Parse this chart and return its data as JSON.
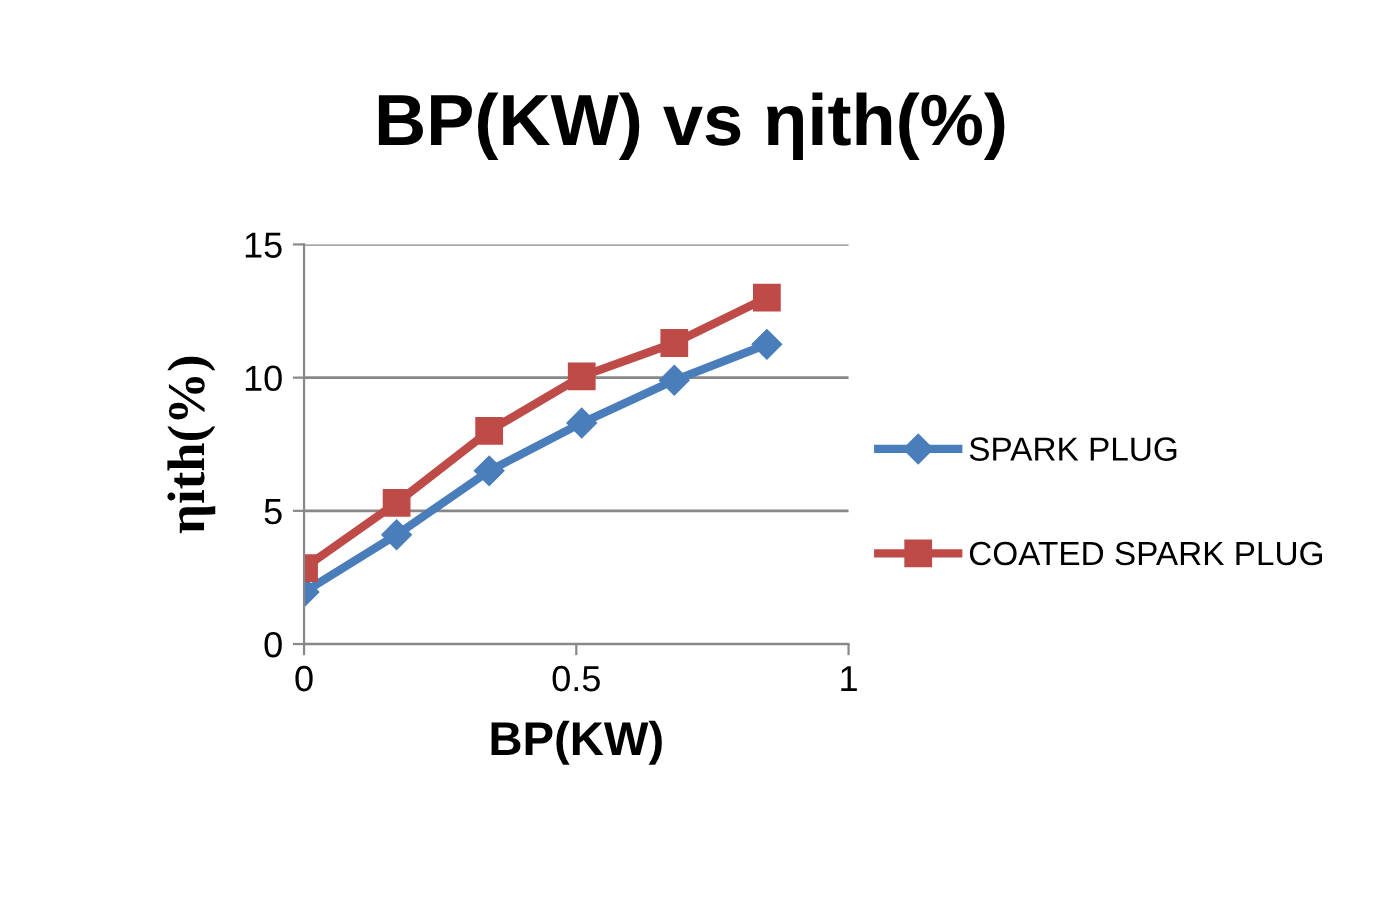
{
  "chart_data": {
    "type": "line",
    "title": "BP(KW) vs ηith(%)",
    "xlabel": "BP(KW)",
    "ylabel": "ηith(%)",
    "x": [
      0,
      0.17,
      0.34,
      0.51,
      0.68,
      0.85
    ],
    "series": [
      {
        "name": "SPARK PLUG",
        "color": "#4a7ebb",
        "marker": "diamond",
        "values": [
          1.95,
          4.1,
          6.5,
          8.3,
          9.9,
          11.25
        ]
      },
      {
        "name": "COATED SPARK PLUG",
        "color": "#be4b48",
        "marker": "square",
        "values": [
          2.85,
          5.3,
          8.0,
          10.05,
          11.3,
          13.0
        ]
      }
    ],
    "xlim": [
      0,
      1
    ],
    "xticks": [
      0,
      0.5,
      1
    ],
    "ylim": [
      0,
      15
    ],
    "yticks": [
      0,
      5,
      10,
      15
    ],
    "grid": "y",
    "legend": "right",
    "line_style": "solid"
  }
}
